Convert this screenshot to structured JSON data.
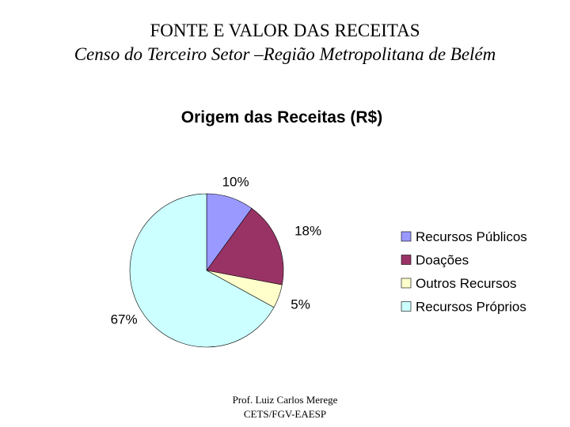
{
  "slide": {
    "title_line1": "FONTE E VALOR DAS RECEITAS",
    "title_line2": "Censo do Terceiro Setor –Região Metropolitana de Belém"
  },
  "footer": {
    "line1": "Prof. Luiz Carlos Merege",
    "line2": "CETS/FGV-EAESP"
  },
  "chart_data": {
    "type": "pie",
    "title": "Origem das Receitas (R$)",
    "categories": [
      "Recursos Públicos",
      "Doações",
      "Outros Recursos",
      "Recursos Próprios"
    ],
    "values": [
      10,
      18,
      5,
      67
    ],
    "labels": [
      "10%",
      "18%",
      "5%",
      "67%"
    ],
    "unit": "%",
    "colors": [
      "#9999FF",
      "#993366",
      "#FFFFCC",
      "#CCFFFF"
    ],
    "legend_position": "right"
  }
}
